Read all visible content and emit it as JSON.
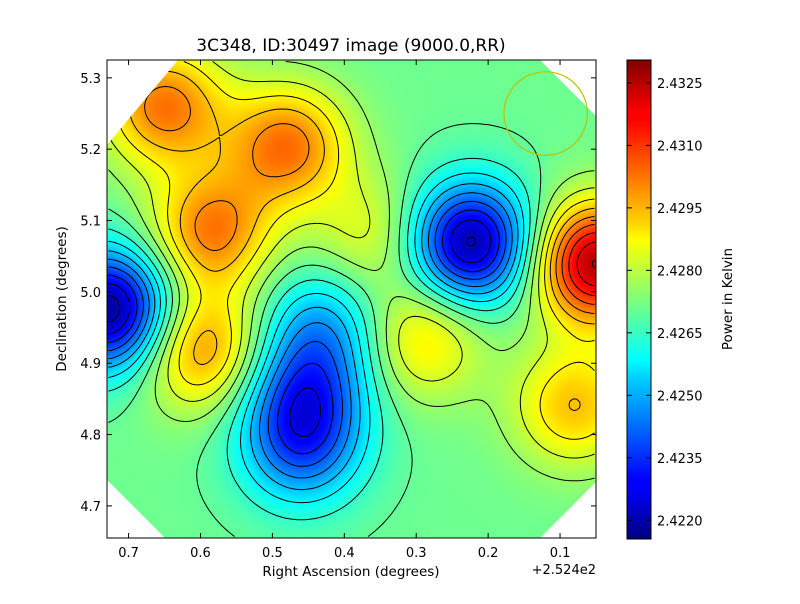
{
  "chart_data": {
    "type": "heatmap",
    "title": "3C348, ID:30497 image (9000.0,RR)",
    "xlabel": "Right Ascension (degrees)",
    "ylabel": "Declination (degrees)",
    "x_offset_label": "+2.524e2",
    "x_ticks": [
      "0.7",
      "0.6",
      "0.5",
      "0.4",
      "0.3",
      "0.2",
      "0.1"
    ],
    "y_ticks": [
      "4.7",
      "4.8",
      "4.9",
      "5.0",
      "5.1",
      "5.2",
      "5.3"
    ],
    "xlim": [
      0.73,
      0.05
    ],
    "ylim": [
      4.655,
      5.325
    ],
    "colorbar": {
      "label": "Power in Kelvin",
      "ticks": [
        "2.4220",
        "2.4235",
        "2.4250",
        "2.4265",
        "2.4280",
        "2.4295",
        "2.4310",
        "2.4325"
      ],
      "range": [
        2.42155,
        2.43305
      ],
      "colormap": "jet"
    },
    "grid": false,
    "contours": true,
    "features": [
      {
        "ra": 0.725,
        "dec": 4.975,
        "value": 2.4217,
        "kind": "minimum"
      },
      {
        "ra": 0.225,
        "dec": 5.068,
        "value": 2.4219,
        "kind": "minimum"
      },
      {
        "ra": 0.455,
        "dec": 4.855,
        "value": 2.4243,
        "kind": "minimum"
      },
      {
        "ra": 0.46,
        "dec": 4.78,
        "value": 2.4245,
        "kind": "minimum"
      },
      {
        "ra": 0.43,
        "dec": 4.95,
        "value": 2.425,
        "kind": "minimum"
      },
      {
        "ra": 0.05,
        "dec": 5.04,
        "value": 2.4325,
        "kind": "maximum"
      },
      {
        "ra": 0.48,
        "dec": 5.205,
        "value": 2.4303,
        "kind": "maximum"
      },
      {
        "ra": 0.585,
        "dec": 5.085,
        "value": 2.4302,
        "kind": "maximum"
      },
      {
        "ra": 0.6,
        "dec": 4.92,
        "value": 2.43,
        "kind": "maximum"
      },
      {
        "ra": 0.65,
        "dec": 5.26,
        "value": 2.4303,
        "kind": "maximum"
      },
      {
        "ra": 0.29,
        "dec": 4.935,
        "value": 2.4291,
        "kind": "maximum"
      },
      {
        "ra": 0.08,
        "dec": 4.84,
        "value": 2.4294,
        "kind": "maximum"
      },
      {
        "ra": 0.36,
        "dec": 5.08,
        "value": 2.4285,
        "kind": "maximum"
      }
    ],
    "beam_circle": {
      "ra": 0.12,
      "dec": 5.25,
      "radius_deg": 0.058
    }
  }
}
